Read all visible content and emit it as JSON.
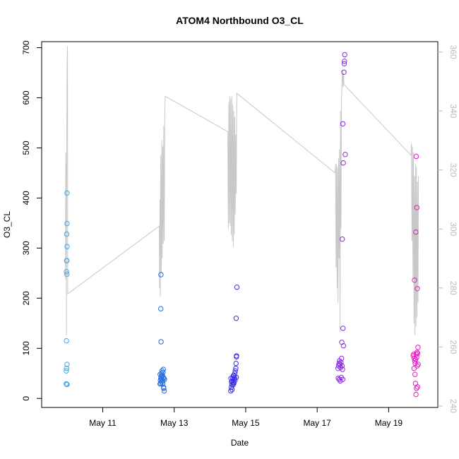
{
  "chart_data": {
    "type": "scatter",
    "title": "ATOM4 Northbound O3_CL",
    "xlabel": "Date",
    "ylabel": "O3_CL",
    "xlim": [
      "2019-05-09T07:00",
      "2019-05-20T09:00"
    ],
    "ylim": [
      -18,
      712
    ],
    "ylim_right": [
      239.5,
      363.5
    ],
    "x_ticks": [
      {
        "date": "2019-05-11",
        "label": "May 11"
      },
      {
        "date": "2019-05-13",
        "label": "May 13"
      },
      {
        "date": "2019-05-15",
        "label": "May 15"
      },
      {
        "date": "2019-05-17",
        "label": "May 17"
      },
      {
        "date": "2019-05-19",
        "label": "May 19"
      }
    ],
    "y_ticks": [
      "0",
      "100",
      "200",
      "300",
      "400",
      "500",
      "600",
      "700"
    ],
    "y_ticks_right": [
      "240",
      "260",
      "280",
      "300",
      "320",
      "340",
      "360"
    ],
    "grid": false,
    "legend": "none",
    "series": [
      {
        "color": "#3fa9e6",
        "points": [
          [
            "2019-05-09T23:33",
            55
          ],
          [
            "2019-05-09T23:45",
            60
          ],
          [
            "2019-05-10T00:00",
            68
          ],
          [
            "2019-05-09T23:47",
            28
          ],
          [
            "2019-05-10T00:05",
            28
          ],
          [
            "2019-05-09T23:30",
            29
          ],
          [
            "2019-05-09T23:40",
            115
          ],
          [
            "2019-05-09T23:38",
            253
          ],
          [
            "2019-05-09T23:55",
            248
          ],
          [
            "2019-05-09T23:45",
            275
          ],
          [
            "2019-05-09T23:57",
            275
          ],
          [
            "2019-05-10T00:05",
            303
          ],
          [
            "2019-05-09T23:48",
            328
          ],
          [
            "2019-05-10T00:02",
            349
          ],
          [
            "2019-05-10T00:00",
            410
          ]
        ]
      },
      {
        "color": "#2a6fe0",
        "points": [
          [
            "2019-05-12T14:30",
            29
          ],
          [
            "2019-05-12T14:45",
            36
          ],
          [
            "2019-05-12T15:00",
            40
          ],
          [
            "2019-05-12T15:15",
            43
          ],
          [
            "2019-05-12T15:30",
            33
          ],
          [
            "2019-05-12T15:45",
            38
          ],
          [
            "2019-05-12T16:00",
            47
          ],
          [
            "2019-05-12T16:15",
            30
          ],
          [
            "2019-05-12T16:30",
            52
          ],
          [
            "2019-05-12T16:45",
            42
          ],
          [
            "2019-05-12T17:00",
            20
          ],
          [
            "2019-05-12T17:15",
            15
          ],
          [
            "2019-05-12T17:30",
            38
          ],
          [
            "2019-05-12T14:35",
            48
          ],
          [
            "2019-05-12T15:05",
            30
          ],
          [
            "2019-05-12T15:25",
            50
          ],
          [
            "2019-05-12T15:50",
            55
          ],
          [
            "2019-05-12T16:20",
            35
          ],
          [
            "2019-05-12T16:40",
            58
          ],
          [
            "2019-05-12T17:05",
            40
          ],
          [
            "2019-05-12T16:55",
            22
          ],
          [
            "2019-05-12T15:40",
            45
          ],
          [
            "2019-05-12T15:10",
            113
          ],
          [
            "2019-05-12T15:00",
            179
          ],
          [
            "2019-05-12T15:05",
            247
          ]
        ]
      },
      {
        "color": "#3a2ee8",
        "points": [
          [
            "2019-05-14T14:00",
            15
          ],
          [
            "2019-05-14T14:20",
            22
          ],
          [
            "2019-05-14T14:40",
            28
          ],
          [
            "2019-05-14T15:00",
            35
          ],
          [
            "2019-05-14T15:20",
            40
          ],
          [
            "2019-05-14T15:40",
            45
          ],
          [
            "2019-05-14T16:00",
            30
          ],
          [
            "2019-05-14T16:20",
            38
          ],
          [
            "2019-05-14T16:40",
            50
          ],
          [
            "2019-05-14T17:00",
            55
          ],
          [
            "2019-05-14T17:20",
            60
          ],
          [
            "2019-05-14T17:40",
            42
          ],
          [
            "2019-05-14T14:10",
            40
          ],
          [
            "2019-05-14T14:30",
            33
          ],
          [
            "2019-05-14T14:50",
            18
          ],
          [
            "2019-05-14T15:30",
            27
          ],
          [
            "2019-05-14T16:10",
            45
          ],
          [
            "2019-05-14T16:50",
            36
          ],
          [
            "2019-05-14T17:30",
            70
          ],
          [
            "2019-05-14T17:45",
            83
          ],
          [
            "2019-05-14T17:50",
            85
          ],
          [
            "2019-05-14T17:35",
            160
          ],
          [
            "2019-05-14T18:05",
            222
          ],
          [
            "2019-05-14T15:50",
            32
          ],
          [
            "2019-05-14T16:30",
            41
          ]
        ]
      },
      {
        "color": "#8a2be2",
        "points": [
          [
            "2019-05-17T14:00",
            60
          ],
          [
            "2019-05-17T14:20",
            65
          ],
          [
            "2019-05-17T14:40",
            70
          ],
          [
            "2019-05-17T15:00",
            75
          ],
          [
            "2019-05-17T15:20",
            68
          ],
          [
            "2019-05-17T15:40",
            62
          ],
          [
            "2019-05-17T16:00",
            72
          ],
          [
            "2019-05-17T16:20",
            80
          ],
          [
            "2019-05-17T16:40",
            65
          ],
          [
            "2019-05-17T17:00",
            58
          ],
          [
            "2019-05-17T14:10",
            40
          ],
          [
            "2019-05-17T14:50",
            38
          ],
          [
            "2019-05-17T15:30",
            35
          ],
          [
            "2019-05-17T16:10",
            42
          ],
          [
            "2019-05-17T17:10",
            38
          ],
          [
            "2019-05-17T16:30",
            112
          ],
          [
            "2019-05-17T17:40",
            105
          ],
          [
            "2019-05-17T17:20",
            140
          ],
          [
            "2019-05-17T16:50",
            318
          ],
          [
            "2019-05-17T17:30",
            470
          ],
          [
            "2019-05-17T18:50",
            487
          ],
          [
            "2019-05-17T17:15",
            548
          ],
          [
            "2019-05-17T18:00",
            651
          ],
          [
            "2019-05-17T18:10",
            668
          ],
          [
            "2019-05-17T18:20",
            673
          ],
          [
            "2019-05-17T18:30",
            686
          ]
        ]
      },
      {
        "color": "#e61cc4",
        "points": [
          [
            "2019-05-19T16:30",
            85
          ],
          [
            "2019-05-19T16:50",
            88
          ],
          [
            "2019-05-19T17:10",
            80
          ],
          [
            "2019-05-19T17:30",
            75
          ],
          [
            "2019-05-19T17:50",
            70
          ],
          [
            "2019-05-19T18:10",
            78
          ],
          [
            "2019-05-19T18:30",
            88
          ],
          [
            "2019-05-19T18:50",
            82
          ],
          [
            "2019-05-19T19:10",
            65
          ],
          [
            "2019-05-19T19:30",
            90
          ],
          [
            "2019-05-19T19:50",
            68
          ],
          [
            "2019-05-19T17:00",
            60
          ],
          [
            "2019-05-19T17:40",
            48
          ],
          [
            "2019-05-19T18:00",
            30
          ],
          [
            "2019-05-19T18:40",
            20
          ],
          [
            "2019-05-19T19:20",
            23
          ],
          [
            "2019-05-19T18:20",
            8
          ],
          [
            "2019-05-19T19:00",
            92
          ],
          [
            "2019-05-19T19:40",
            102
          ],
          [
            "2019-05-19T17:20",
            236
          ],
          [
            "2019-05-19T18:15",
            332
          ],
          [
            "2019-05-19T18:55",
            381
          ],
          [
            "2019-05-19T19:15",
            219
          ],
          [
            "2019-05-19T18:30",
            483
          ]
        ]
      }
    ],
    "line_series": {
      "axis": "right",
      "color": "#c8c8c8",
      "points": [
        [
          "2019-05-09T23:00",
          283
        ],
        [
          "2019-05-09T23:10",
          326
        ],
        [
          "2019-05-09T23:20",
          305
        ],
        [
          "2019-05-09T23:30",
          322
        ],
        [
          "2019-05-09T23:38",
          264
        ],
        [
          "2019-05-09T23:45",
          308
        ],
        [
          "2019-05-09T23:52",
          330
        ],
        [
          "2019-05-10T00:00",
          350
        ],
        [
          "2019-05-10T00:10",
          358
        ],
        [
          "2019-05-10T00:20",
          362
        ],
        [
          "2019-05-10T00:30",
          278
        ],
        [
          "2019-05-12T14:00",
          301
        ],
        [
          "2019-05-12T14:10",
          280
        ],
        [
          "2019-05-12T14:25",
          310
        ],
        [
          "2019-05-12T14:40",
          277
        ],
        [
          "2019-05-12T15:00",
          325
        ],
        [
          "2019-05-12T15:20",
          285
        ],
        [
          "2019-05-12T15:40",
          330
        ],
        [
          "2019-05-12T16:00",
          290
        ],
        [
          "2019-05-12T16:20",
          328
        ],
        [
          "2019-05-12T16:40",
          295
        ],
        [
          "2019-05-12T17:00",
          335
        ],
        [
          "2019-05-12T17:20",
          296
        ],
        [
          "2019-05-12T17:40",
          338
        ],
        [
          "2019-05-12T17:50",
          343
        ],
        [
          "2019-05-12T18:00",
          345
        ],
        [
          "2019-05-14T12:00",
          333
        ],
        [
          "2019-05-14T12:20",
          300
        ],
        [
          "2019-05-14T12:40",
          343
        ],
        [
          "2019-05-14T13:00",
          302
        ],
        [
          "2019-05-14T13:20",
          345
        ],
        [
          "2019-05-14T13:40",
          301
        ],
        [
          "2019-05-14T14:00",
          344
        ],
        [
          "2019-05-14T14:20",
          298
        ],
        [
          "2019-05-14T14:40",
          345
        ],
        [
          "2019-05-14T15:00",
          296
        ],
        [
          "2019-05-14T15:20",
          342
        ],
        [
          "2019-05-14T15:40",
          294
        ],
        [
          "2019-05-14T16:00",
          340
        ],
        [
          "2019-05-14T16:20",
          298
        ],
        [
          "2019-05-14T16:40",
          338
        ],
        [
          "2019-05-14T17:00",
          305
        ],
        [
          "2019-05-14T17:20",
          332
        ],
        [
          "2019-05-14T17:40",
          312
        ],
        [
          "2019-05-14T18:00",
          346
        ],
        [
          "2019-05-17T12:00",
          319
        ],
        [
          "2019-05-17T12:20",
          322
        ],
        [
          "2019-05-17T12:40",
          287
        ],
        [
          "2019-05-17T13:00",
          322
        ],
        [
          "2019-05-17T13:20",
          280
        ],
        [
          "2019-05-17T13:40",
          321
        ],
        [
          "2019-05-17T14:00",
          275
        ],
        [
          "2019-05-17T14:20",
          324
        ],
        [
          "2019-05-17T14:40",
          290
        ],
        [
          "2019-05-17T15:00",
          327
        ],
        [
          "2019-05-17T15:20",
          265
        ],
        [
          "2019-05-17T15:40",
          340
        ],
        [
          "2019-05-17T16:00",
          300
        ],
        [
          "2019-05-17T16:20",
          344
        ],
        [
          "2019-05-17T16:40",
          350
        ],
        [
          "2019-05-17T17:00",
          354
        ],
        [
          "2019-05-17T17:20",
          348
        ],
        [
          "2019-05-17T17:40",
          353
        ],
        [
          "2019-05-17T18:00",
          349
        ],
        [
          "2019-05-19T15:00",
          325
        ],
        [
          "2019-05-19T15:20",
          329
        ],
        [
          "2019-05-19T15:40",
          296
        ],
        [
          "2019-05-19T16:00",
          328
        ],
        [
          "2019-05-19T16:20",
          283
        ],
        [
          "2019-05-19T16:40",
          326
        ],
        [
          "2019-05-19T17:00",
          268
        ],
        [
          "2019-05-19T17:20",
          318
        ],
        [
          "2019-05-19T17:40",
          264
        ],
        [
          "2019-05-19T18:00",
          322
        ],
        [
          "2019-05-19T18:20",
          267
        ],
        [
          "2019-05-19T18:40",
          321
        ],
        [
          "2019-05-19T19:00",
          270
        ],
        [
          "2019-05-19T19:20",
          316
        ],
        [
          "2019-05-19T19:40",
          275
        ],
        [
          "2019-05-19T20:00",
          318
        ]
      ]
    }
  }
}
